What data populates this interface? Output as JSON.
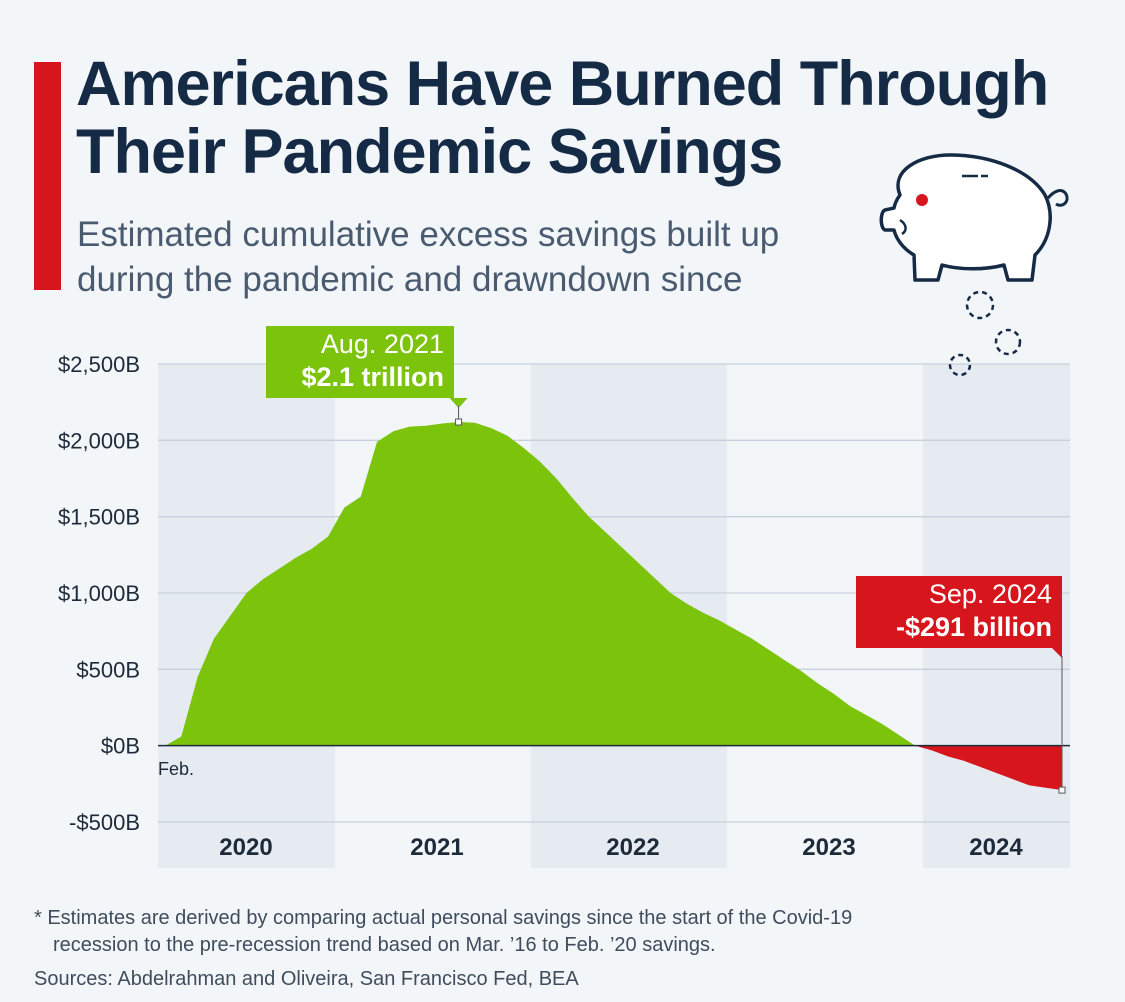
{
  "header": {
    "title_line1": "Americans Have Burned Through",
    "title_line2": "Their Pandemic Savings",
    "subtitle_line1": "Estimated cumulative excess savings built up",
    "subtitle_line2": "during the pandemic and drawndown since"
  },
  "colors": {
    "accent": "#d7151c",
    "positive_area": "#7cc30c",
    "negative_area": "#d7151c",
    "title": "#152a45"
  },
  "chart_data": {
    "type": "area",
    "title": "Americans Have Burned Through Their Pandemic Savings",
    "subtitle": "Estimated cumulative excess savings built up during the pandemic and drawndown since",
    "unit": "billion USD",
    "x_start_label": "Feb.",
    "x_ticks": [
      "2020",
      "2021",
      "2022",
      "2023",
      "2024"
    ],
    "y_ticks": [
      {
        "value": 2500,
        "label": "$2,500B"
      },
      {
        "value": 2000,
        "label": "$2,000B"
      },
      {
        "value": 1500,
        "label": "$1,500B"
      },
      {
        "value": 1000,
        "label": "$1,000B"
      },
      {
        "value": 500,
        "label": "$500B"
      },
      {
        "value": 0,
        "label": "$0B"
      },
      {
        "value": -500,
        "label": "-$500B"
      }
    ],
    "ylim": [
      -500,
      2500
    ],
    "x_range_months": [
      0,
      55
    ],
    "x_start": "Feb. 2020",
    "series": [
      {
        "name": "Cumulative excess savings",
        "points": [
          {
            "m": 0,
            "v": 0
          },
          {
            "m": 1,
            "v": 60
          },
          {
            "m": 2,
            "v": 450
          },
          {
            "m": 3,
            "v": 700
          },
          {
            "m": 4,
            "v": 850
          },
          {
            "m": 5,
            "v": 1000
          },
          {
            "m": 6,
            "v": 1090
          },
          {
            "m": 7,
            "v": 1160
          },
          {
            "m": 8,
            "v": 1230
          },
          {
            "m": 9,
            "v": 1290
          },
          {
            "m": 10,
            "v": 1370
          },
          {
            "m": 11,
            "v": 1560
          },
          {
            "m": 12,
            "v": 1630
          },
          {
            "m": 13,
            "v": 1990
          },
          {
            "m": 14,
            "v": 2060
          },
          {
            "m": 15,
            "v": 2090
          },
          {
            "m": 16,
            "v": 2095
          },
          {
            "m": 17,
            "v": 2110
          },
          {
            "m": 18,
            "v": 2120
          },
          {
            "m": 19,
            "v": 2115
          },
          {
            "m": 20,
            "v": 2080
          },
          {
            "m": 21,
            "v": 2030
          },
          {
            "m": 22,
            "v": 1950
          },
          {
            "m": 23,
            "v": 1860
          },
          {
            "m": 24,
            "v": 1750
          },
          {
            "m": 25,
            "v": 1620
          },
          {
            "m": 26,
            "v": 1500
          },
          {
            "m": 27,
            "v": 1400
          },
          {
            "m": 28,
            "v": 1300
          },
          {
            "m": 29,
            "v": 1200
          },
          {
            "m": 30,
            "v": 1100
          },
          {
            "m": 31,
            "v": 1000
          },
          {
            "m": 32,
            "v": 930
          },
          {
            "m": 33,
            "v": 870
          },
          {
            "m": 34,
            "v": 820
          },
          {
            "m": 35,
            "v": 760
          },
          {
            "m": 36,
            "v": 700
          },
          {
            "m": 37,
            "v": 630
          },
          {
            "m": 38,
            "v": 560
          },
          {
            "m": 39,
            "v": 490
          },
          {
            "m": 40,
            "v": 410
          },
          {
            "m": 41,
            "v": 340
          },
          {
            "m": 42,
            "v": 260
          },
          {
            "m": 43,
            "v": 200
          },
          {
            "m": 44,
            "v": 140
          },
          {
            "m": 45,
            "v": 70
          },
          {
            "m": 46,
            "v": 0
          },
          {
            "m": 47,
            "v": -30
          },
          {
            "m": 48,
            "v": -70
          },
          {
            "m": 49,
            "v": -100
          },
          {
            "m": 50,
            "v": -140
          },
          {
            "m": 51,
            "v": -180
          },
          {
            "m": 52,
            "v": -220
          },
          {
            "m": 53,
            "v": -260
          },
          {
            "m": 55,
            "v": -291
          }
        ]
      }
    ],
    "annotations": [
      {
        "m": 18,
        "v": 2120,
        "date": "Aug. 2021",
        "value": "$2.1 trillion",
        "color": "#7cc30c"
      },
      {
        "m": 55,
        "v": -291,
        "date": "Sep. 2024",
        "value": "-$291 billion",
        "color": "#d7151c"
      }
    ]
  },
  "footer": {
    "footnote_line1": "* Estimates are derived by comparing actual personal savings since the start of the Covid-19",
    "footnote_line2": "recession to the pre-recession trend based on Mar. ’16 to Feb. ’20 savings.",
    "sources": "Sources: Abdelrahman and Oliveira, San Francisco Fed, BEA"
  },
  "illustration": {
    "icon": "piggy-bank-icon"
  }
}
